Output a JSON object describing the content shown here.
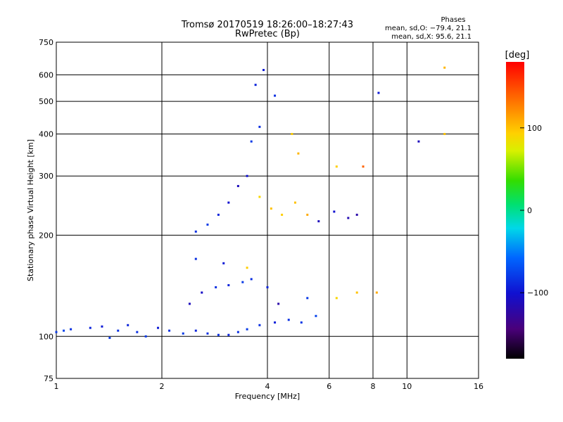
{
  "chart_data": {
    "type": "scatter",
    "title": "Tromsø 20170519 18:26:00–18:27:43",
    "subtitle": "RwPretec (Bp)",
    "xlabel": "Frequency [MHz]",
    "ylabel": "Stationary phase Virtual Height [km]",
    "x_scale": "log",
    "y_scale": "log",
    "xlim": [
      1,
      16
    ],
    "ylim": [
      75,
      750
    ],
    "x_ticks": [
      1,
      2,
      4,
      6,
      8,
      10,
      16
    ],
    "y_ticks": [
      75,
      100,
      200,
      300,
      400,
      500,
      600,
      750
    ],
    "grid": true,
    "phase_note": {
      "heading": "Phases",
      "line_o": "mean, sd,O: −79.4, 21.1",
      "line_x": "mean, sd,X:  95.6, 21.1"
    },
    "colorbar": {
      "label": "[deg]",
      "range": [
        -180,
        180
      ],
      "ticks": [
        "100",
        "0",
        "−100"
      ],
      "tick_values": [
        100,
        0,
        -100
      ]
    },
    "series": [
      {
        "points": [
          {
            "x": 1.0,
            "y": 103,
            "phase": -80
          },
          {
            "x": 1.05,
            "y": 104,
            "phase": -75
          },
          {
            "x": 1.1,
            "y": 105,
            "phase": -85
          },
          {
            "x": 1.25,
            "y": 106,
            "phase": -90
          },
          {
            "x": 1.35,
            "y": 107,
            "phase": -95
          },
          {
            "x": 1.42,
            "y": 99,
            "phase": -80
          },
          {
            "x": 1.5,
            "y": 104,
            "phase": -85
          },
          {
            "x": 1.6,
            "y": 108,
            "phase": -90
          },
          {
            "x": 1.7,
            "y": 103,
            "phase": -85
          },
          {
            "x": 1.8,
            "y": 100,
            "phase": -80
          },
          {
            "x": 1.95,
            "y": 106,
            "phase": -95
          },
          {
            "x": 2.1,
            "y": 104,
            "phase": -85
          },
          {
            "x": 2.3,
            "y": 102,
            "phase": -80
          },
          {
            "x": 2.5,
            "y": 104,
            "phase": -90
          },
          {
            "x": 2.7,
            "y": 102,
            "phase": -85
          },
          {
            "x": 2.9,
            "y": 101,
            "phase": -85
          },
          {
            "x": 3.1,
            "y": 101,
            "phase": -90
          },
          {
            "x": 3.3,
            "y": 103,
            "phase": -85
          },
          {
            "x": 3.5,
            "y": 105,
            "phase": -80
          },
          {
            "x": 3.8,
            "y": 108,
            "phase": -85
          },
          {
            "x": 4.2,
            "y": 110,
            "phase": -90
          },
          {
            "x": 4.6,
            "y": 112,
            "phase": -85
          },
          {
            "x": 5.0,
            "y": 110,
            "phase": -80
          },
          {
            "x": 5.5,
            "y": 115,
            "phase": -75
          },
          {
            "x": 2.4,
            "y": 125,
            "phase": -110
          },
          {
            "x": 2.6,
            "y": 135,
            "phase": -105
          },
          {
            "x": 2.85,
            "y": 140,
            "phase": -85
          },
          {
            "x": 3.1,
            "y": 142,
            "phase": -90
          },
          {
            "x": 3.4,
            "y": 145,
            "phase": -80
          },
          {
            "x": 3.6,
            "y": 148,
            "phase": -85
          },
          {
            "x": 2.5,
            "y": 170,
            "phase": -85
          },
          {
            "x": 3.0,
            "y": 165,
            "phase": -95
          },
          {
            "x": 3.5,
            "y": 160,
            "phase": 95
          },
          {
            "x": 4.0,
            "y": 140,
            "phase": -90
          },
          {
            "x": 4.3,
            "y": 125,
            "phase": -120
          },
          {
            "x": 5.2,
            "y": 130,
            "phase": -80
          },
          {
            "x": 6.3,
            "y": 130,
            "phase": 90
          },
          {
            "x": 7.2,
            "y": 135,
            "phase": 100
          },
          {
            "x": 8.2,
            "y": 135,
            "phase": 110
          },
          {
            "x": 2.5,
            "y": 205,
            "phase": -85
          },
          {
            "x": 2.7,
            "y": 215,
            "phase": -80
          },
          {
            "x": 2.9,
            "y": 230,
            "phase": -90
          },
          {
            "x": 3.1,
            "y": 250,
            "phase": -100
          },
          {
            "x": 3.3,
            "y": 280,
            "phase": -110
          },
          {
            "x": 3.5,
            "y": 300,
            "phase": -100
          },
          {
            "x": 3.6,
            "y": 380,
            "phase": -80
          },
          {
            "x": 3.8,
            "y": 420,
            "phase": -85
          },
          {
            "x": 3.7,
            "y": 560,
            "phase": -90
          },
          {
            "x": 3.9,
            "y": 620,
            "phase": -95
          },
          {
            "x": 4.2,
            "y": 520,
            "phase": -85
          },
          {
            "x": 3.8,
            "y": 260,
            "phase": 90
          },
          {
            "x": 4.1,
            "y": 240,
            "phase": 100
          },
          {
            "x": 4.4,
            "y": 230,
            "phase": 95
          },
          {
            "x": 4.8,
            "y": 250,
            "phase": 100
          },
          {
            "x": 4.7,
            "y": 400,
            "phase": 95
          },
          {
            "x": 4.9,
            "y": 350,
            "phase": 105
          },
          {
            "x": 5.2,
            "y": 230,
            "phase": 110
          },
          {
            "x": 5.6,
            "y": 220,
            "phase": -110
          },
          {
            "x": 6.2,
            "y": 235,
            "phase": -100
          },
          {
            "x": 6.8,
            "y": 225,
            "phase": -115
          },
          {
            "x": 7.2,
            "y": 230,
            "phase": -120
          },
          {
            "x": 6.3,
            "y": 320,
            "phase": 95
          },
          {
            "x": 7.5,
            "y": 320,
            "phase": 140
          },
          {
            "x": 8.3,
            "y": 530,
            "phase": -95
          },
          {
            "x": 10.8,
            "y": 380,
            "phase": -110
          },
          {
            "x": 12.8,
            "y": 400,
            "phase": 100
          },
          {
            "x": 12.8,
            "y": 630,
            "phase": 105
          }
        ]
      }
    ]
  }
}
